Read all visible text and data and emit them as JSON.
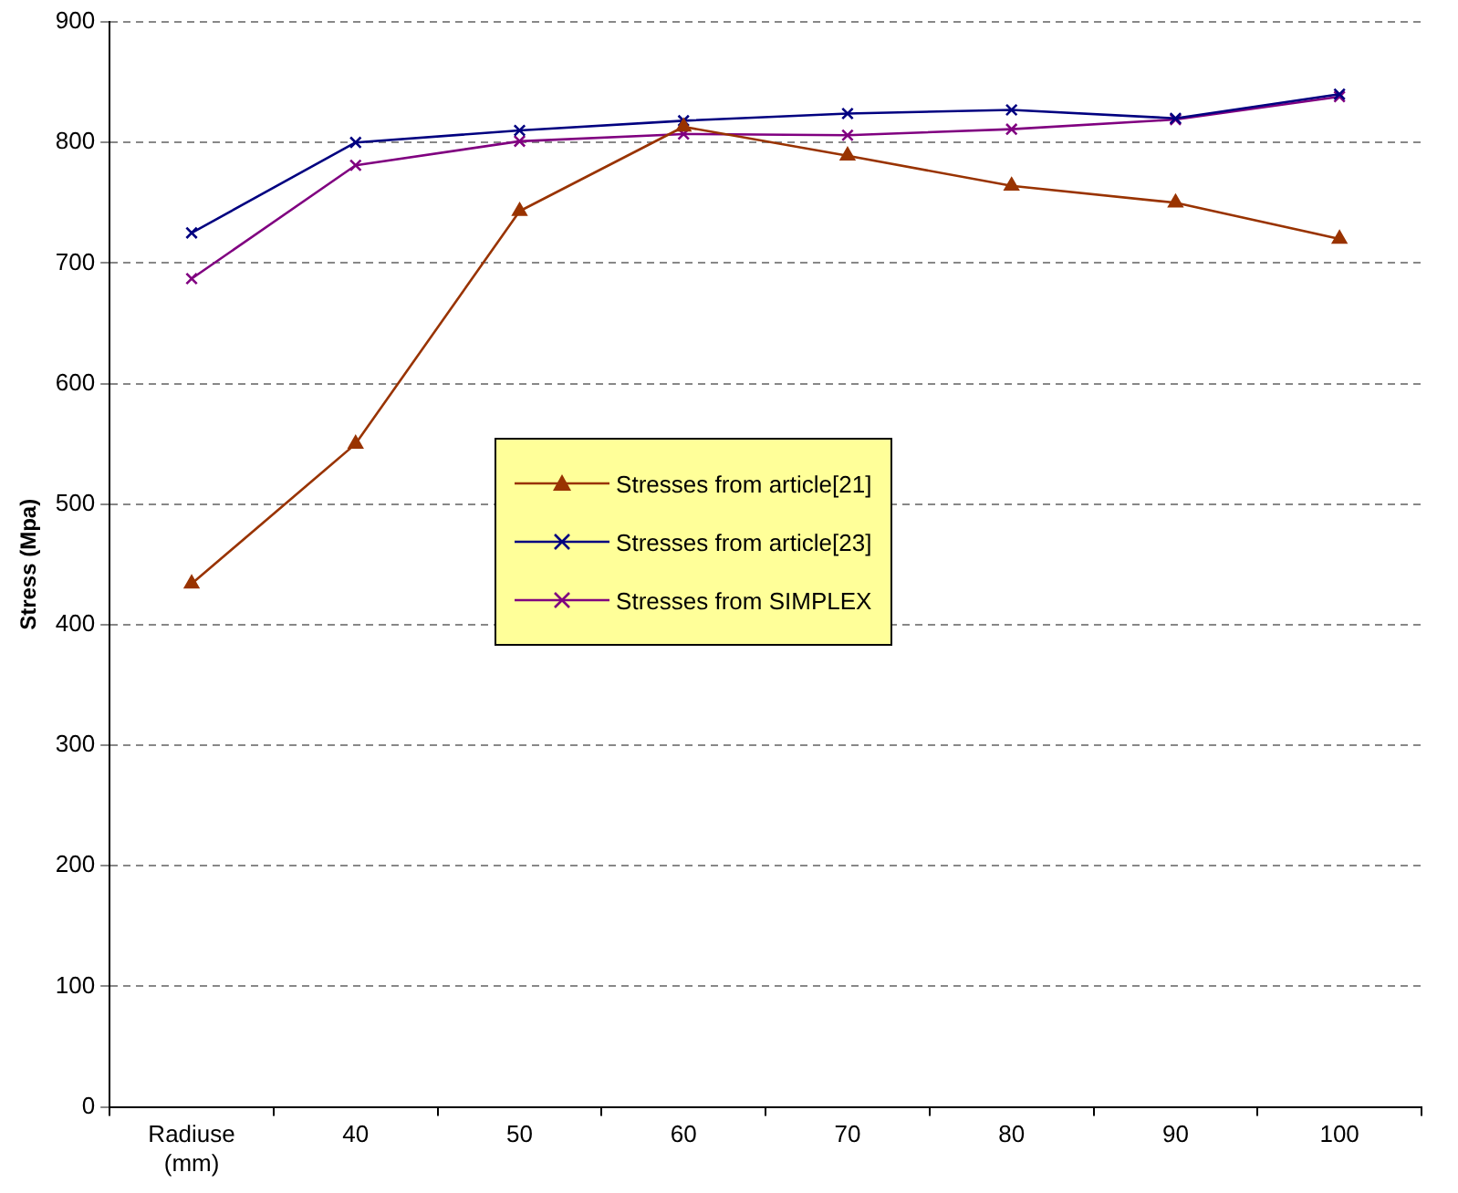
{
  "chart_data": {
    "type": "line",
    "ylabel": "Stress (Mpa)",
    "categories": [
      "Radiuse (mm)",
      "40",
      "50",
      "60",
      "70",
      "80",
      "90",
      "100"
    ],
    "series": [
      {
        "name": "Stresses from article[21]",
        "color": "#993300",
        "marker": "triangle",
        "values": [
          434,
          550,
          743,
          813,
          789,
          764,
          750,
          720
        ]
      },
      {
        "name": "Stresses from article[23]",
        "color": "#000080",
        "marker": "cross",
        "values": [
          725,
          800,
          810,
          818,
          824,
          827,
          820,
          840
        ]
      },
      {
        "name": "Stresses from SIMPLEX",
        "color": "#800080",
        "marker": "cross",
        "values": [
          687,
          781,
          801,
          807,
          806,
          811,
          819,
          838
        ]
      }
    ],
    "ylim": [
      0,
      900
    ],
    "yticks": [
      0,
      100,
      200,
      300,
      400,
      500,
      600,
      700,
      800,
      900
    ],
    "grid": "y",
    "legend": "center",
    "line_style": "solid"
  }
}
